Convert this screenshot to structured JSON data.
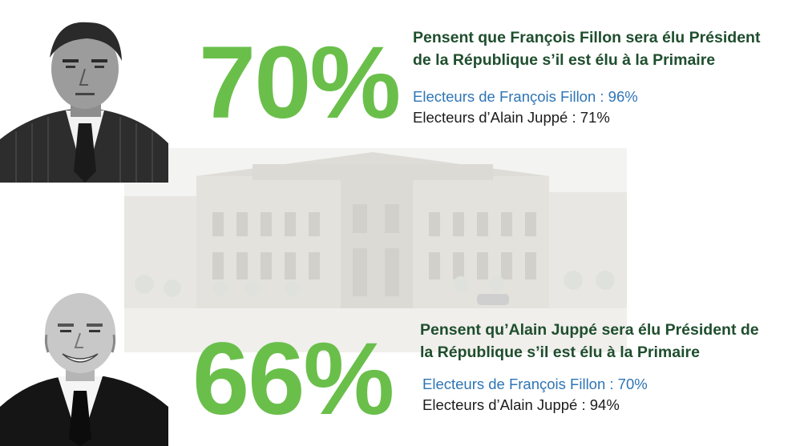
{
  "top_block": {
    "percentage": "70%",
    "headline_line1": "Pensent que François Fillon sera élu Président",
    "headline_line2": "de la République s’il est élu à la Primaire",
    "stat_fillon": "Electeurs de François Fillon : 96%",
    "stat_juppe": "Electeurs d’Alain Juppé : 71%"
  },
  "bottom_block": {
    "percentage": "66%",
    "headline_line1": "Pensent qu’Alain Juppé sera élu Président de",
    "headline_line2": "la République s’il est élu à la Primaire",
    "stat_fillon": "Electeurs de François Fillon : 70%",
    "stat_juppe": "Electeurs d’Alain Juppé : 94%"
  },
  "colors": {
    "percentage_green": "#6abf4b",
    "headline_green": "#1f4e2e",
    "fillon_voters_blue": "#2e75b6",
    "juppe_voters_dark": "#1c1c1c"
  }
}
